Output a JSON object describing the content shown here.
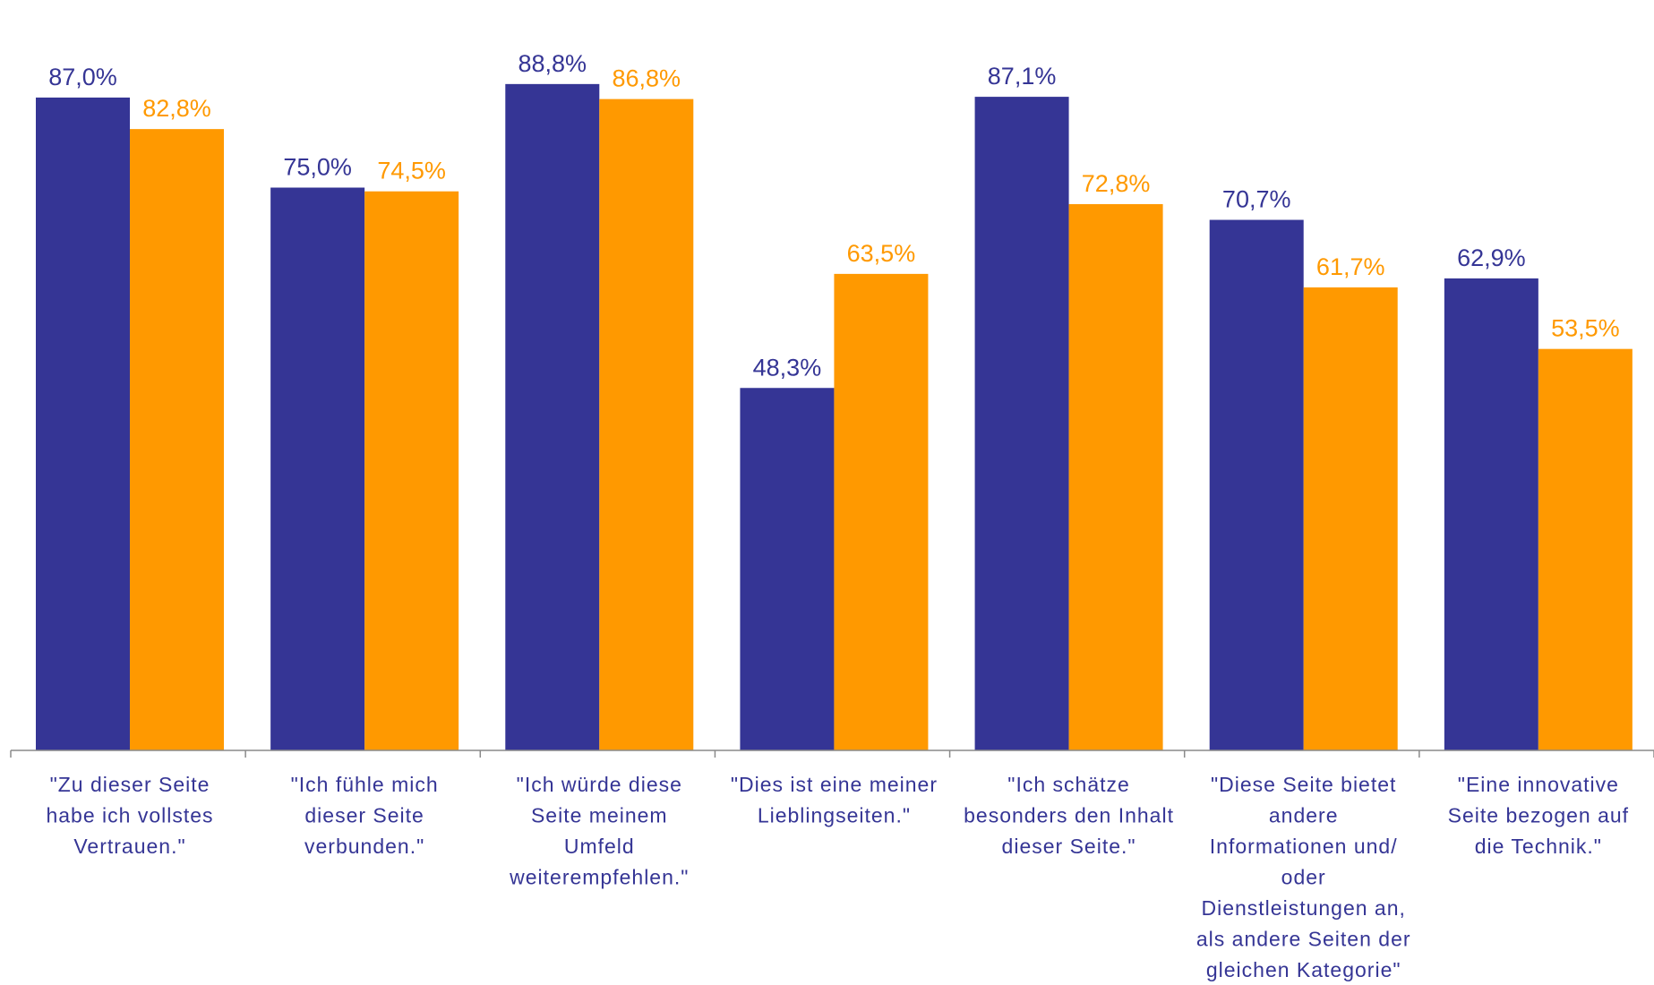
{
  "chart_data": {
    "type": "bar",
    "categories": [
      [
        "\"Zu dieser Seite",
        "habe ich vollstes",
        "Vertrauen.\""
      ],
      [
        "\"Ich fühle mich",
        "dieser Seite",
        "verbunden.\""
      ],
      [
        "\"Ich würde diese",
        "Seite meinem",
        "Umfeld",
        "weiterempfehlen.\""
      ],
      [
        "\"Dies ist eine meiner",
        "Lieblingseiten.\""
      ],
      [
        "\"Ich schätze",
        "besonders den Inhalt",
        "dieser Seite.\""
      ],
      [
        "\"Diese Seite bietet",
        "andere",
        "Informationen und/",
        "oder",
        "Dienstleistungen an,",
        "als andere Seiten der",
        "gleichen Kategorie\""
      ],
      [
        "\"Eine innovative",
        "Seite bezogen auf",
        "die Technik.\""
      ]
    ],
    "series": [
      {
        "color": "#353595",
        "values": [
          87.0,
          75.0,
          88.8,
          48.3,
          87.1,
          70.7,
          62.9
        ],
        "labels": [
          "87,0%",
          "75,0%",
          "88,8%",
          "48,3%",
          "87,1%",
          "70,7%",
          "62,9%"
        ]
      },
      {
        "color": "#FF9900",
        "values": [
          82.8,
          74.5,
          86.8,
          63.5,
          72.8,
          61.7,
          53.5
        ],
        "labels": [
          "82,8%",
          "74,5%",
          "86,8%",
          "63,5%",
          "72,8%",
          "61,7%",
          "53,5%"
        ]
      }
    ],
    "ylim": [
      0,
      100
    ],
    "grid": false,
    "legend": "none"
  }
}
